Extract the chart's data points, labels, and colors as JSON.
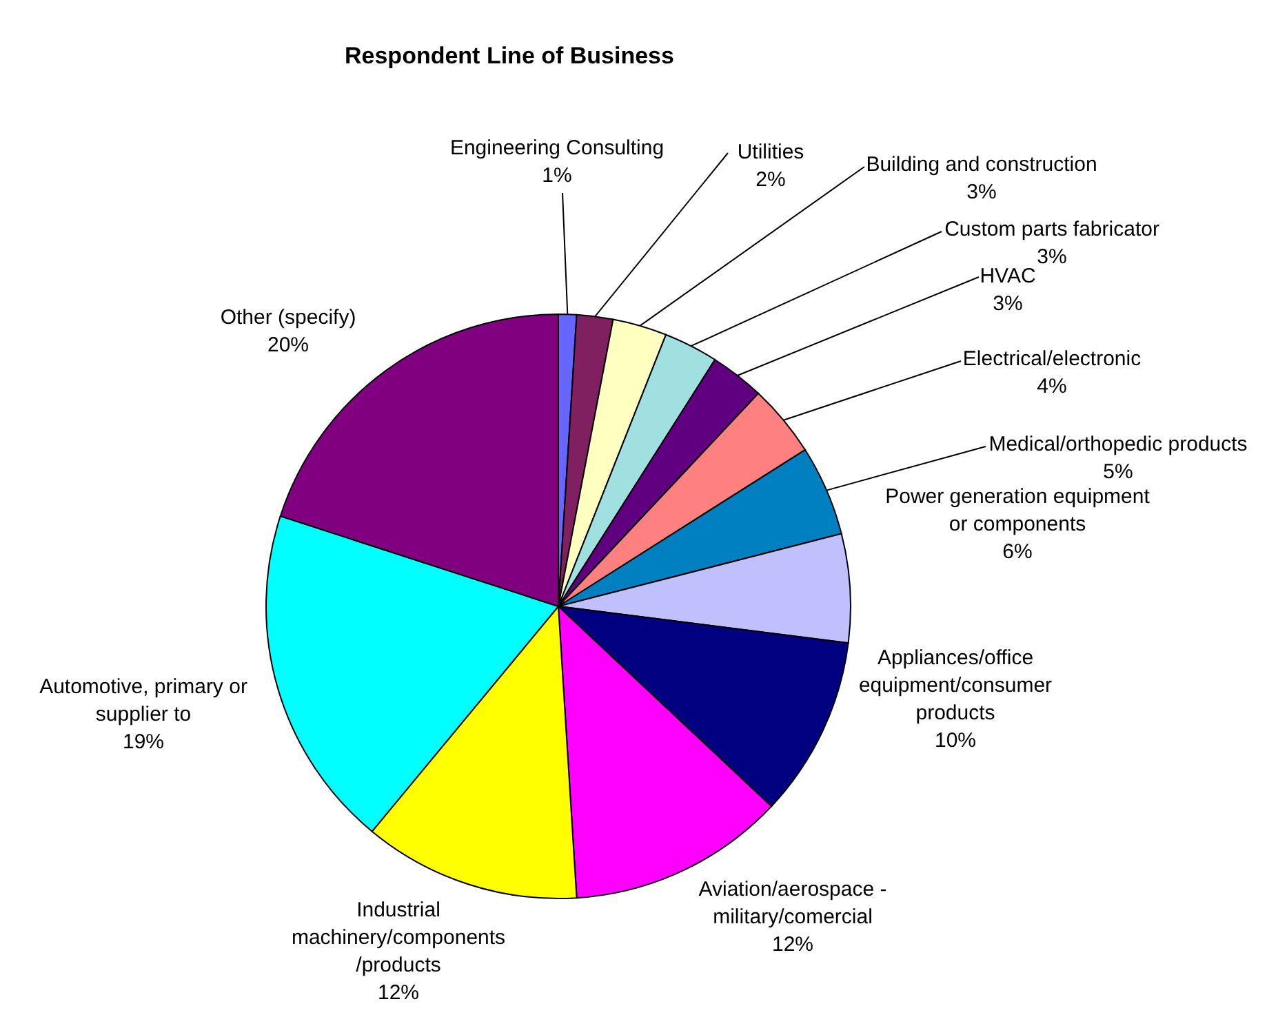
{
  "chart_data": {
    "type": "pie",
    "title": "Respondent Line of Business",
    "categories": [
      "Engineering Consulting",
      "Utilities",
      "Building and construction",
      "Custom parts fabricator",
      "HVAC",
      "Electrical/electronic",
      "Medical/orthopedic products",
      "Power generation equipment or components",
      "Appliances/office equipment/consumer products",
      "Aviation/aerospace - military/comercial",
      "Industrial machinery/components /products",
      "Automotive, primary or supplier to",
      "Other (specify)"
    ],
    "values": [
      1,
      2,
      3,
      3,
      3,
      4,
      5,
      6,
      10,
      12,
      12,
      19,
      20
    ],
    "value_labels": [
      "1%",
      "2%",
      "3%",
      "3%",
      "3%",
      "4%",
      "5%",
      "6%",
      "10%",
      "12%",
      "12%",
      "19%",
      "20%"
    ],
    "colors": [
      "#6666ff",
      "#802060",
      "#ffffc0",
      "#a0e0e0",
      "#600080",
      "#ff8080",
      "#0080c0",
      "#c0c0ff",
      "#000080",
      "#ff00ff",
      "#ffff00",
      "#00ffff",
      "#800080"
    ],
    "legend": false
  }
}
